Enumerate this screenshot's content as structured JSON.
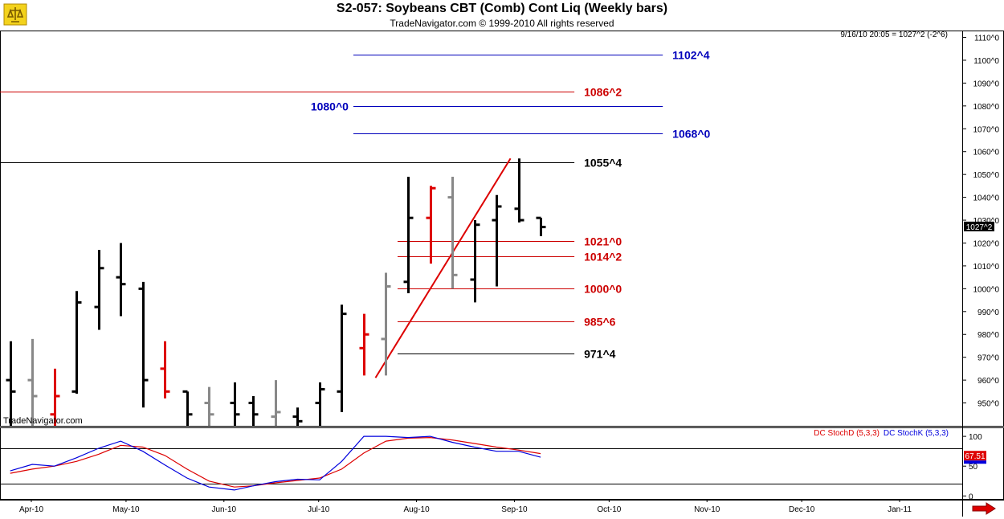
{
  "header": {
    "title": "S2-057:  Soybeans CBT (Comb) Cont Liq  (Weekly bars)",
    "copyright": "TradeNavigator.com © 1999-2010 All rights reserved"
  },
  "watermark": "TradeNavigator.com",
  "colors": {
    "bar_black": "#000000",
    "bar_red": "#dd0000",
    "bar_gray": "#888888",
    "level_blue": "#0000bb",
    "level_red": "#cc0000",
    "stochD": "#dd0000",
    "stochK": "#0000dd",
    "accent_arrow": "#dd0000"
  },
  "chart_data": [
    {
      "type": "ohlc",
      "title": "S2-057:  Soybeans CBT (Comb) Cont Liq  (Weekly bars)",
      "status_line": "9/16/10 20:05 = 1027^2 (-2^6)",
      "last_price_label": "1027^2",
      "last_price": 1027.25,
      "ylim": [
        940,
        1113
      ],
      "y_ticks": [
        {
          "v": 950,
          "label": "950^0"
        },
        {
          "v": 960,
          "label": "960^0"
        },
        {
          "v": 970,
          "label": "970^0"
        },
        {
          "v": 980,
          "label": "980^0"
        },
        {
          "v": 990,
          "label": "990^0"
        },
        {
          "v": 1000,
          "label": "1000^0"
        },
        {
          "v": 1010,
          "label": "1010^0"
        },
        {
          "v": 1020,
          "label": "1020^0"
        },
        {
          "v": 1030,
          "label": "1030^0"
        },
        {
          "v": 1040,
          "label": "1040^0"
        },
        {
          "v": 1050,
          "label": "1050^0"
        },
        {
          "v": 1060,
          "label": "1060^0"
        },
        {
          "v": 1070,
          "label": "1070^0"
        },
        {
          "v": 1080,
          "label": "1080^0"
        },
        {
          "v": 1090,
          "label": "1090^0"
        },
        {
          "v": 1100,
          "label": "1100^0"
        },
        {
          "v": 1110,
          "label": "1110^0"
        }
      ],
      "x_ticks": [
        {
          "date": "2010-04-01",
          "label": "Apr-10"
        },
        {
          "date": "2010-05-01",
          "label": "May-10"
        },
        {
          "date": "2010-06-01",
          "label": "Jun-10"
        },
        {
          "date": "2010-07-01",
          "label": "Jul-10"
        },
        {
          "date": "2010-08-01",
          "label": "Aug-10"
        },
        {
          "date": "2010-09-01",
          "label": "Sep-10"
        },
        {
          "date": "2010-10-01",
          "label": "Oct-10"
        },
        {
          "date": "2010-11-01",
          "label": "Nov-10"
        },
        {
          "date": "2010-12-01",
          "label": "Dec-10"
        },
        {
          "date": "2011-01-01",
          "label": "Jan-11"
        }
      ],
      "bars": [
        {
          "date": "2010-03-22",
          "open": 960,
          "high": 977,
          "low": 935,
          "close": 955,
          "color": "black"
        },
        {
          "date": "2010-03-29",
          "open": 960,
          "high": 978,
          "low": 930,
          "close": 953,
          "color": "gray"
        },
        {
          "date": "2010-04-05",
          "open": 945,
          "high": 965,
          "low": 935,
          "close": 953,
          "color": "red"
        },
        {
          "date": "2010-04-12",
          "open": 955,
          "high": 999,
          "low": 954,
          "close": 994,
          "color": "black"
        },
        {
          "date": "2010-04-19",
          "open": 992,
          "high": 1017,
          "low": 982,
          "close": 1009,
          "color": "black"
        },
        {
          "date": "2010-04-26",
          "open": 1005,
          "high": 1020,
          "low": 988,
          "close": 1002,
          "color": "black"
        },
        {
          "date": "2010-05-03",
          "open": 1000,
          "high": 1003,
          "low": 948,
          "close": 960,
          "color": "black"
        },
        {
          "date": "2010-05-10",
          "open": 965,
          "high": 977,
          "low": 952,
          "close": 955,
          "color": "red"
        },
        {
          "date": "2010-05-17",
          "open": 955,
          "high": 955,
          "low": 935,
          "close": 945,
          "color": "black"
        },
        {
          "date": "2010-05-24",
          "open": 950,
          "high": 957,
          "low": 935,
          "close": 945,
          "color": "gray"
        },
        {
          "date": "2010-06-01",
          "open": 950,
          "high": 959,
          "low": 935,
          "close": 945,
          "color": "black"
        },
        {
          "date": "2010-06-07",
          "open": 950,
          "high": 953,
          "low": 935,
          "close": 945,
          "color": "black"
        },
        {
          "date": "2010-06-14",
          "open": 944,
          "high": 960,
          "low": 935,
          "close": 946,
          "color": "gray"
        },
        {
          "date": "2010-06-21",
          "open": 944,
          "high": 948,
          "low": 935,
          "close": 942,
          "color": "black"
        },
        {
          "date": "2010-06-28",
          "open": 950,
          "high": 959,
          "low": 935,
          "close": 956,
          "color": "black"
        },
        {
          "date": "2010-07-05",
          "open": 955,
          "high": 993,
          "low": 946,
          "close": 989,
          "color": "black"
        },
        {
          "date": "2010-07-12",
          "open": 974,
          "high": 989,
          "low": 962,
          "close": 980,
          "color": "red"
        },
        {
          "date": "2010-07-19",
          "open": 978,
          "high": 1007,
          "low": 962,
          "close": 1001,
          "color": "gray"
        },
        {
          "date": "2010-07-26",
          "open": 1003,
          "high": 1049,
          "low": 998,
          "close": 1031,
          "color": "black"
        },
        {
          "date": "2010-08-02",
          "open": 1031,
          "high": 1045,
          "low": 1011,
          "close": 1044,
          "color": "red"
        },
        {
          "date": "2010-08-09",
          "open": 1040,
          "high": 1049,
          "low": 1000,
          "close": 1006,
          "color": "gray"
        },
        {
          "date": "2010-08-16",
          "open": 1004,
          "high": 1030,
          "low": 994,
          "close": 1028,
          "color": "black"
        },
        {
          "date": "2010-08-23",
          "open": 1030,
          "high": 1041,
          "low": 1001,
          "close": 1036,
          "color": "black"
        },
        {
          "date": "2010-08-30",
          "open": 1035,
          "high": 1057,
          "low": 1029,
          "close": 1030,
          "color": "black"
        },
        {
          "date": "2010-09-06",
          "open": 1031,
          "high": 1031,
          "low": 1023,
          "close": 1027,
          "color": "black"
        }
      ],
      "levels": [
        {
          "value": 1102.5,
          "label": "1102^4",
          "color": "blue",
          "from": "2010-07-12",
          "to": "2010-10-18"
        },
        {
          "value": 1086.25,
          "label": "1086^2",
          "color": "red",
          "from": "2010-03-15",
          "to": "2010-09-20"
        },
        {
          "value": 1080,
          "label": "1080^0",
          "color": "blue",
          "from": "2010-07-12",
          "to": "2010-10-18"
        },
        {
          "value": 1068,
          "label": "1068^0",
          "color": "blue",
          "from": "2010-07-12",
          "to": "2010-10-18"
        },
        {
          "value": 1055.5,
          "label": "1055^4",
          "color": "black",
          "from": "2010-03-15",
          "to": "2010-09-20"
        },
        {
          "value": 1021,
          "label": "1021^0",
          "color": "red",
          "from": "2010-07-26",
          "to": "2010-09-20"
        },
        {
          "value": 1014.25,
          "label": "1014^2",
          "color": "red",
          "from": "2010-07-26",
          "to": "2010-09-20"
        },
        {
          "value": 1000,
          "label": "1000^0",
          "color": "red",
          "from": "2010-07-26",
          "to": "2010-09-20"
        },
        {
          "value": 985.75,
          "label": "985^6",
          "color": "red",
          "from": "2010-07-26",
          "to": "2010-09-20"
        },
        {
          "value": 971.5,
          "label": "971^4",
          "color": "black",
          "from": "2010-07-26",
          "to": "2010-09-20"
        }
      ],
      "trendline": {
        "from": {
          "date": "2010-07-19",
          "value": 961
        },
        "to": {
          "date": "2010-08-30",
          "value": 1057
        },
        "color": "red"
      }
    },
    {
      "type": "line",
      "series": [
        {
          "name": "DC StochD (5,3,3)",
          "color": "red",
          "values": [
            38,
            45,
            50,
            58,
            70,
            85,
            82,
            68,
            45,
            25,
            15,
            17,
            22,
            26,
            30,
            45,
            72,
            92,
            97,
            98,
            94,
            88,
            82,
            77,
            71
          ]
        },
        {
          "name": "DC StochK (5,3,3)",
          "color": "blue",
          "values": [
            42,
            53,
            50,
            64,
            80,
            92,
            75,
            52,
            30,
            15,
            10,
            17,
            24,
            28,
            27,
            58,
            100,
            100,
            98,
            100,
            90,
            82,
            75,
            75,
            65
          ]
        }
      ],
      "last_value_label": "67.51",
      "ylim": [
        -5,
        115
      ],
      "y_ticks": [
        0,
        50,
        100
      ],
      "ref_lines": [
        20,
        80
      ]
    }
  ]
}
